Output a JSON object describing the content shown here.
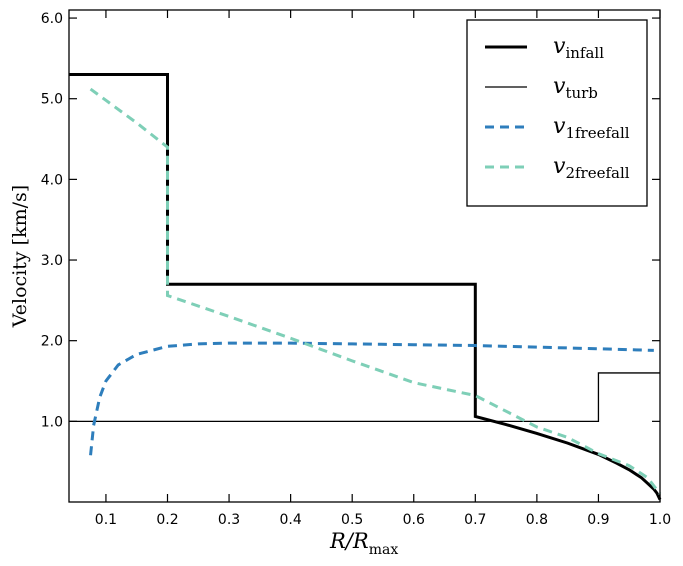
{
  "chart_data": {
    "type": "line",
    "xlabel": "R/R",
    "xlabel_sub": "max",
    "ylabel": "Velocity [km/s]",
    "xlim": [
      0.04,
      1.0
    ],
    "ylim": [
      0.0,
      6.1
    ],
    "x_ticks": [
      0.1,
      0.2,
      0.3,
      0.4,
      0.5,
      0.6,
      0.7,
      0.8,
      0.9,
      1.0
    ],
    "x_tick_labels": [
      "0.1",
      "0.2",
      "0.3",
      "0.4",
      "0.5",
      "0.6",
      "0.7",
      "0.8",
      "0.9",
      "1.0"
    ],
    "y_ticks": [
      1.0,
      2.0,
      3.0,
      4.0,
      5.0,
      6.0
    ],
    "y_tick_labels": [
      "1.0",
      "2.0",
      "3.0",
      "4.0",
      "5.0",
      "6.0"
    ],
    "legend_position": "top-right",
    "series": [
      {
        "name": "v",
        "subscript": "infall",
        "color": "#000000",
        "style": "solid-thick",
        "x": [
          0.04,
          0.2,
          0.2,
          0.7,
          0.7,
          0.75,
          0.8,
          0.85,
          0.9,
          0.93,
          0.95,
          0.97,
          0.98,
          0.99,
          0.995,
          1.0
        ],
        "y": [
          5.3,
          5.3,
          2.7,
          2.7,
          1.06,
          0.96,
          0.85,
          0.73,
          0.59,
          0.48,
          0.4,
          0.3,
          0.23,
          0.16,
          0.11,
          0.03
        ]
      },
      {
        "name": "v",
        "subscript": "turb",
        "color": "#000000",
        "style": "solid-thin",
        "x": [
          0.04,
          0.9,
          0.9,
          1.0
        ],
        "y": [
          1.0,
          1.0,
          1.6,
          1.6
        ]
      },
      {
        "name": "v",
        "subscript": "1freefall",
        "color": "#2e7ebc",
        "style": "dashed",
        "x": [
          0.075,
          0.08,
          0.09,
          0.1,
          0.12,
          0.15,
          0.2,
          0.25,
          0.3,
          0.4,
          0.5,
          0.6,
          0.7,
          0.8,
          0.9,
          0.99
        ],
        "y": [
          0.58,
          0.95,
          1.3,
          1.5,
          1.7,
          1.83,
          1.93,
          1.96,
          1.97,
          1.97,
          1.96,
          1.95,
          1.94,
          1.92,
          1.9,
          1.88
        ]
      },
      {
        "name": "v",
        "subscript": "2freefall",
        "color": "#7ecfb7",
        "style": "dashed",
        "x": [
          0.075,
          0.1,
          0.15,
          0.2,
          0.2,
          0.3,
          0.4,
          0.5,
          0.6,
          0.7,
          0.8,
          0.85,
          0.9,
          0.95,
          0.98,
          1.0
        ],
        "y": [
          5.12,
          4.98,
          4.7,
          4.4,
          2.56,
          2.3,
          2.03,
          1.75,
          1.48,
          1.32,
          0.93,
          0.8,
          0.6,
          0.45,
          0.3,
          0.1
        ]
      }
    ]
  }
}
